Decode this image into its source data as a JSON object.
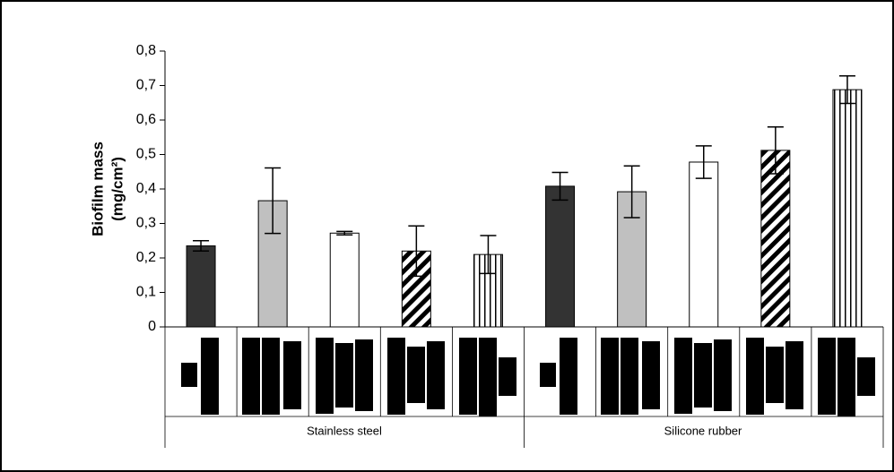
{
  "chart_data": {
    "type": "bar",
    "y_label": [
      "Biofilm mass",
      "(mg/cm²)"
    ],
    "groups": [
      "Stainless steel",
      "Silicone rubber"
    ],
    "categories": [
      null,
      null,
      null,
      null,
      null,
      null,
      null,
      null,
      null,
      null
    ],
    "values": [
      0.235,
      0.366,
      0.272,
      0.22,
      0.21,
      0.408,
      0.392,
      0.478,
      0.512,
      0.688
    ],
    "errors": [
      0.015,
      0.095,
      0.005,
      0.073,
      0.055,
      0.04,
      0.075,
      0.047,
      0.068,
      0.04
    ],
    "colors": [
      "#333333",
      "#c0c0c0",
      "#ffffff",
      "url(#diag)",
      "url(#vert)",
      "#333333",
      "#c0c0c0",
      "#ffffff",
      "url(#diag)",
      "url(#vert)"
    ],
    "ylim": [
      0,
      0.8
    ],
    "yticks": [
      0,
      {
        "value": 0.1,
        "label": "0,1"
      },
      {
        "value": 0.2,
        "label": "0,2"
      },
      {
        "value": 0.3,
        "label": "0,3"
      },
      {
        "value": 0.4,
        "label": "0,4"
      },
      {
        "value": 0.5,
        "label": "0,5"
      },
      {
        "value": 0.6,
        "label": "0,6"
      },
      {
        "value": 0.7,
        "label": "0,7"
      },
      {
        "value": 0.8,
        "label": "0,8"
      }
    ]
  }
}
